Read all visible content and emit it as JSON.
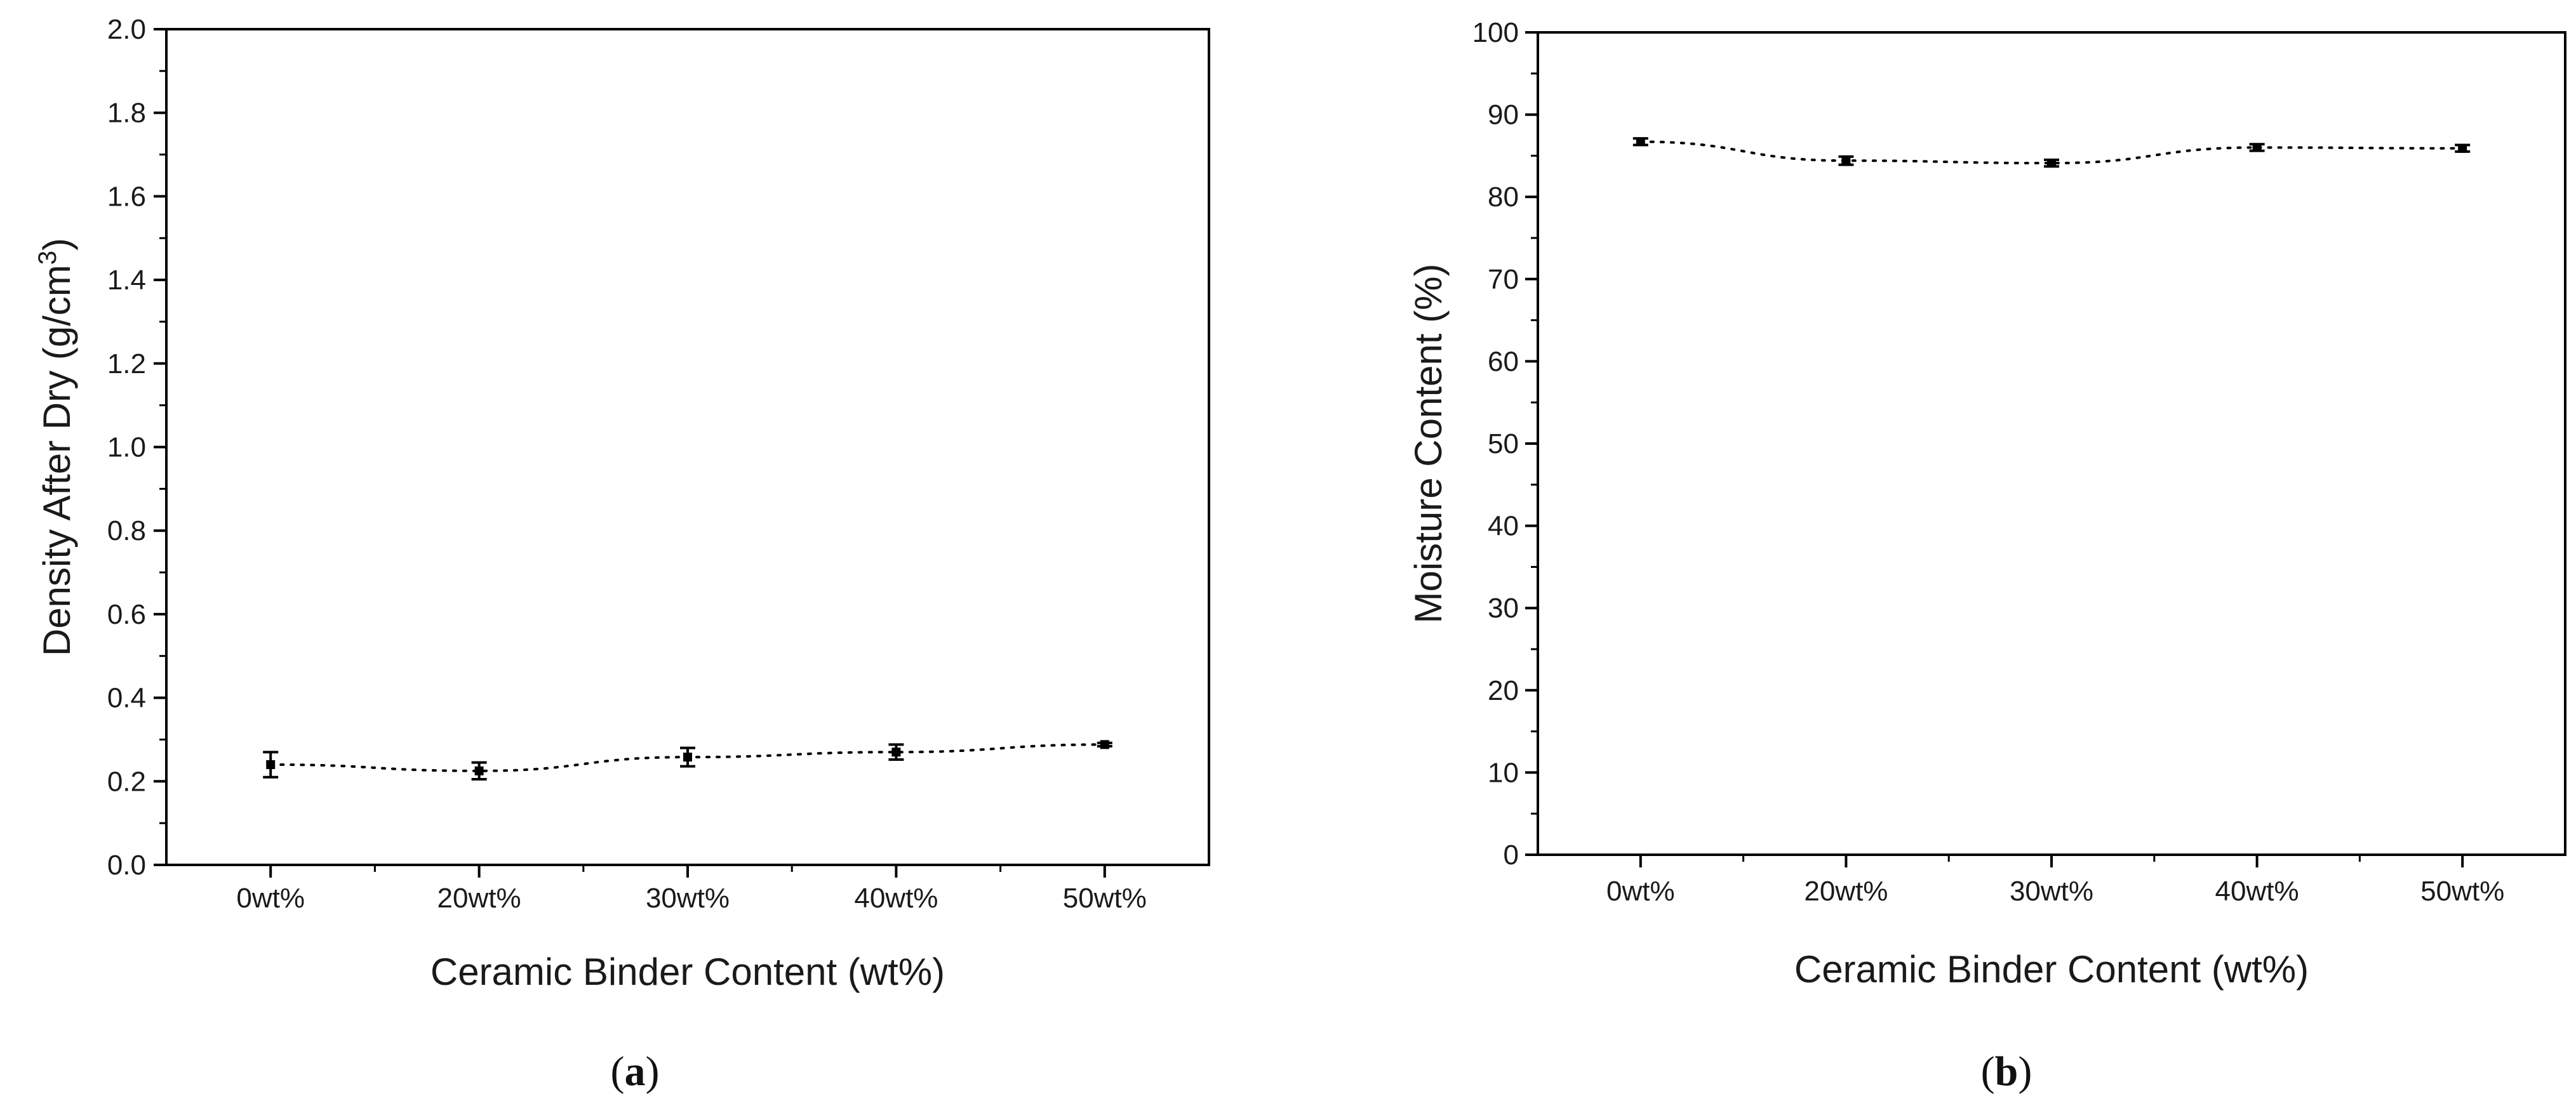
{
  "chart_data": [
    {
      "type": "line",
      "caption": {
        "open": "(",
        "letter": "a",
        "close": ")"
      },
      "xlabel": "Ceramic Binder Content (wt%)",
      "ylabel": {
        "main": "Density After Dry (g/cm",
        "sup": "3",
        "close": ")"
      },
      "categories": [
        "0wt%",
        "20wt%",
        "30wt%",
        "40wt%",
        "50wt%"
      ],
      "series": [
        {
          "values": [
            0.24,
            0.225,
            0.258,
            0.27,
            0.288
          ],
          "errors": [
            0.03,
            0.02,
            0.022,
            0.018,
            0.004
          ]
        }
      ],
      "ylim": [
        0.0,
        2.0
      ],
      "yticks": [
        0.0,
        0.2,
        0.4,
        0.6,
        0.8,
        1.0,
        1.2,
        1.4,
        1.6,
        1.8,
        2.0
      ],
      "ytick_labels": [
        "0.0",
        "0.2",
        "0.4",
        "0.6",
        "0.8",
        "1.0",
        "1.2",
        "1.4",
        "1.6",
        "1.8",
        "2.0"
      ],
      "line_style": "dotted",
      "grid": false,
      "colors": {
        "line": "#000000",
        "axes": "#000000"
      }
    },
    {
      "type": "line",
      "caption": {
        "open": "(",
        "letter": "b",
        "close": ")"
      },
      "xlabel": "Ceramic Binder Content (wt%)",
      "ylabel": {
        "main": "Moisture Content (%)",
        "sup": "",
        "close": ""
      },
      "categories": [
        "0wt%",
        "20wt%",
        "30wt%",
        "40wt%",
        "50wt%"
      ],
      "series": [
        {
          "values": [
            86.7,
            84.4,
            84.1,
            86.0,
            85.9
          ],
          "errors": [
            0.4,
            0.5,
            0.4,
            0.4,
            0.4
          ]
        }
      ],
      "ylim": [
        0,
        100
      ],
      "yticks": [
        0,
        10,
        20,
        30,
        40,
        50,
        60,
        70,
        80,
        90,
        100
      ],
      "ytick_labels": [
        "0",
        "10",
        "20",
        "30",
        "40",
        "50",
        "60",
        "70",
        "80",
        "90",
        "100"
      ],
      "line_style": "dotted",
      "grid": false,
      "colors": {
        "line": "#000000",
        "axes": "#000000"
      }
    }
  ]
}
